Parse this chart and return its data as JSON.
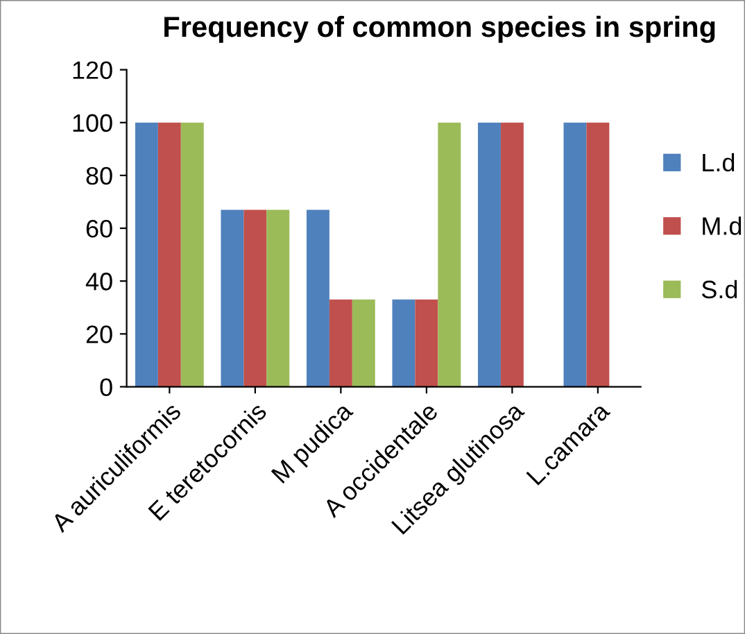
{
  "chart_data": {
    "type": "bar",
    "title": "Frequency of common species in spring",
    "categories": [
      "A auriculiformis",
      "E teretocornis",
      "M pudica",
      "A occidentale",
      "Litsea glutinosa",
      "L.camara"
    ],
    "series": [
      {
        "name": "L.d",
        "color": "#4f81bd",
        "values": [
          100,
          67,
          67,
          33,
          100,
          100
        ]
      },
      {
        "name": "M.d",
        "color": "#c0504d",
        "values": [
          100,
          67,
          33,
          33,
          100,
          100
        ]
      },
      {
        "name": "S.d",
        "color": "#9bbb59",
        "values": [
          100,
          67,
          33,
          100,
          null,
          null
        ]
      }
    ],
    "ylim": [
      0,
      120
    ],
    "yticks": [
      0,
      20,
      40,
      60,
      80,
      100,
      120
    ],
    "grid": false,
    "legend": "right"
  }
}
